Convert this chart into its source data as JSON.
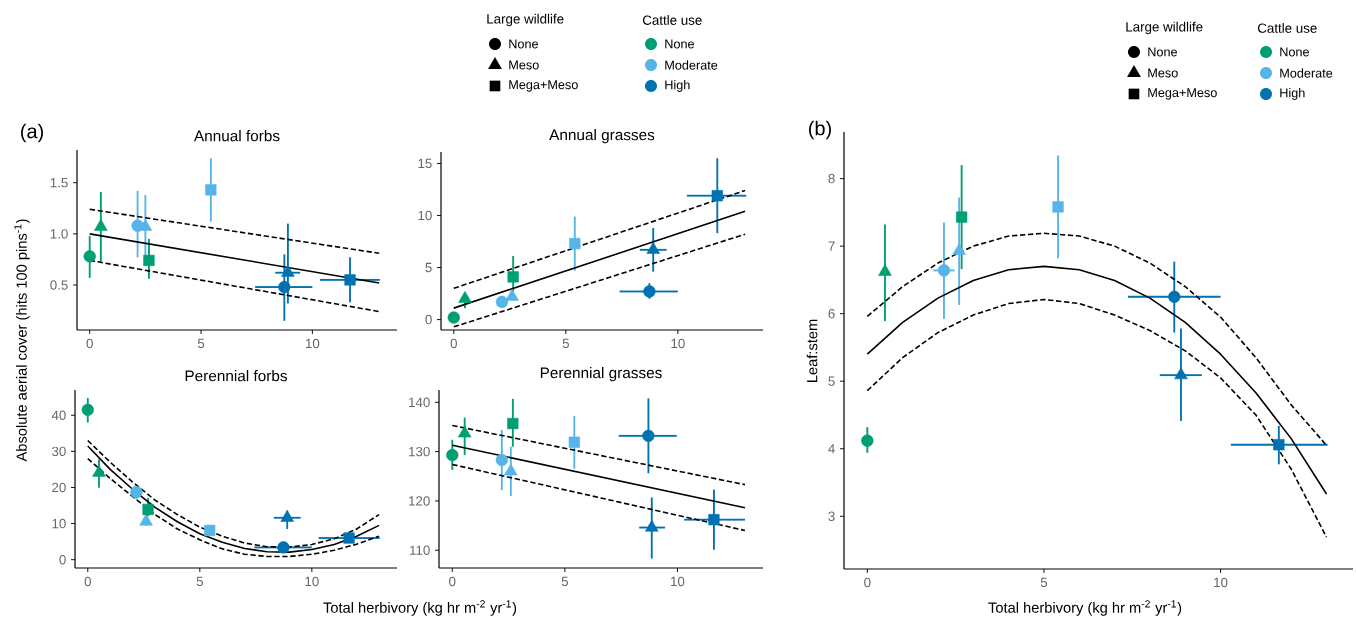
{
  "chart_data": [
    {
      "type": "scatter",
      "title": "Annual forbs",
      "ylabel": "Absolute aerial cover (hits 100 pins$^{-1}$)",
      "annotations": [
        "(a)"
      ],
      "legend": "top",
      "legend_title": [
        "Large wildlife",
        "Cattle use"
      ],
      "xlim": [
        -0.57,
        13.8
      ],
      "ylim": [
        0.06,
        1.82
      ],
      "xticks": [
        0,
        5,
        10
      ],
      "yticks": [
        0.5,
        {
          "value": 1,
          "label": "1.0"
        },
        1.5
      ],
      "series": [
        {
          "marker": "circle",
          "colors": [
            "#009e73",
            "#56b4e9",
            "#0072b2"
          ],
          "x": [
            0,
            2.15,
            8.74
          ],
          "values": [
            0.78,
            1.08,
            0.48
          ],
          "errors": [
            [
              0.57,
              0.98
            ],
            [
              0.77,
              1.42
            ],
            [
              0.15,
              0.8
            ]
          ],
          "xerrors": [
            null,
            null,
            [
              7.43,
              10.0
            ]
          ]
        },
        {
          "marker": "triangle",
          "colors": [
            "#009e73",
            "#56b4e9",
            "#0072b2"
          ],
          "x": [
            0.5,
            2.5,
            8.9
          ],
          "values": [
            1.07,
            1.07,
            0.62
          ],
          "errors": [
            [
              0.72,
              1.41
            ],
            [
              0.77,
              1.38
            ],
            [
              0.32,
              1.1
            ]
          ],
          "xerrors": [
            null,
            null,
            [
              8.33,
              9.45
            ]
          ]
        },
        {
          "marker": "square",
          "colors": [
            "#009e73",
            "#56b4e9",
            "#0072b2"
          ],
          "x": [
            2.66,
            5.44,
            11.69
          ],
          "values": [
            0.74,
            1.43,
            0.55
          ],
          "errors": [
            [
              0.56,
              0.95
            ],
            [
              1.12,
              1.74
            ],
            [
              0.33,
              0.77
            ]
          ],
          "xerrors": [
            null,
            null,
            [
              10.34,
              13.03
            ]
          ]
        },
        {
          "name": "None",
          "marker": "circle",
          "color": "#000000"
        },
        {
          "name": "Meso",
          "marker": "triangle",
          "color": "#000000"
        },
        {
          "name": "Mega+Meso",
          "marker": "square",
          "color": "#000000"
        },
        {
          "name": "None",
          "marker": "circle",
          "color": "#009e73"
        },
        {
          "name": "Moderate",
          "marker": "circle",
          "color": "#56b4e9"
        },
        {
          "name": "High",
          "marker": "circle",
          "color": "#0072b2"
        },
        {
          "type": "line",
          "color": "#000000",
          "line_style": "solid",
          "x": [
            0,
            13
          ],
          "values": [
            1.0,
            0.52
          ]
        },
        {
          "type": "line",
          "color": "#000000",
          "line_style": "dashed",
          "x": [
            0,
            13
          ],
          "values": [
            1.24,
            0.81
          ]
        },
        {
          "type": "line",
          "color": "#000000",
          "line_style": "dashed",
          "x": [
            0,
            13
          ],
          "values": [
            0.74,
            0.24
          ]
        }
      ]
    },
    {
      "type": "scatter",
      "title": "Annual grasses",
      "xlim": [
        -0.57,
        13.8
      ],
      "ylim": [
        -1,
        16.1
      ],
      "xticks": [
        0,
        5,
        10
      ],
      "yticks": [
        0,
        5,
        10,
        15
      ],
      "series": [
        {
          "marker": "circle",
          "colors": [
            "#009e73",
            "#56b4e9",
            "#0072b2"
          ],
          "x": [
            0,
            2.15,
            8.73
          ],
          "values": [
            0.2,
            1.7,
            2.7
          ],
          "errors": [
            null,
            null,
            [
              2.0,
              3.5
            ]
          ],
          "xerrors": [
            null,
            null,
            [
              7.4,
              10.0
            ]
          ]
        },
        {
          "marker": "triangle",
          "colors": [
            "#009e73",
            "#56b4e9",
            "#0072b2"
          ],
          "x": [
            0.5,
            2.6,
            8.9
          ],
          "values": [
            2.0,
            2.2,
            6.7
          ],
          "errors": [
            [
              1.1,
              2.4
            ],
            null,
            [
              4.6,
              8.8
            ]
          ],
          "xerrors": [
            null,
            null,
            [
              8.3,
              9.5
            ]
          ]
        },
        {
          "marker": "square",
          "colors": [
            "#009e73",
            "#56b4e9",
            "#0072b2"
          ],
          "x": [
            2.65,
            5.4,
            11.76
          ],
          "values": [
            4.1,
            7.3,
            11.9
          ],
          "errors": [
            [
              2.7,
              6.1
            ],
            [
              4.7,
              9.9
            ],
            [
              8.3,
              15.5
            ]
          ],
          "xerrors": [
            null,
            null,
            [
              10.4,
              13.05
            ]
          ]
        },
        {
          "type": "line",
          "color": "#000000",
          "line_style": "solid",
          "x": [
            0,
            13
          ],
          "values": [
            1.1,
            10.4
          ]
        },
        {
          "type": "line",
          "color": "#000000",
          "line_style": "dashed",
          "x": [
            0,
            13
          ],
          "values": [
            3.0,
            12.4
          ]
        },
        {
          "type": "line",
          "color": "#000000",
          "line_style": "dashed",
          "x": [
            0,
            13
          ],
          "values": [
            -0.7,
            8.2
          ]
        }
      ]
    },
    {
      "type": "scatter",
      "title": "Perennial forbs",
      "xlabel": "Total herbivory (kg hr m$^{-2}$ yr$^{-1}$)",
      "xlim": [
        -0.57,
        13.8
      ],
      "ylim": [
        -2.3,
        47
      ],
      "xticks": [
        0,
        5,
        10
      ],
      "yticks": [
        0,
        10,
        20,
        30,
        40
      ],
      "series": [
        {
          "marker": "circle",
          "colors": [
            "#009e73",
            "#56b4e9",
            "#0072b2"
          ],
          "x": [
            0,
            2.17,
            8.73
          ],
          "values": [
            41.5,
            18.7,
            3.4
          ],
          "errors": [
            [
              38,
              44.8
            ],
            [
              16.7,
              20.8
            ],
            null
          ],
          "xerrors": [
            null,
            null,
            [
              7.43,
              10.0
            ]
          ]
        },
        {
          "marker": "triangle",
          "colors": [
            "#009e73",
            "#56b4e9",
            "#0072b2"
          ],
          "x": [
            0.5,
            2.6,
            8.9
          ],
          "values": [
            24.1,
            10.6,
            11.6
          ],
          "errors": [
            [
              19.9,
              27.8
            ],
            [
              9.3,
              13
            ],
            [
              8.5,
              13.6
            ]
          ],
          "xerrors": [
            null,
            null,
            [
              8.3,
              9.5
            ]
          ]
        },
        {
          "marker": "square",
          "colors": [
            "#009e73",
            "#56b4e9",
            "#0072b2"
          ],
          "x": [
            2.69,
            5.44,
            11.66
          ],
          "values": [
            13.9,
            8.1,
            6.0
          ],
          "errors": [
            [
              12,
              17.1
            ],
            null,
            null
          ],
          "xerrors": [
            null,
            null,
            [
              10.3,
              13.03
            ]
          ]
        },
        {
          "type": "line",
          "color": "#000000",
          "line_style": "solid",
          "x": [
            0,
            1,
            2,
            3,
            4,
            5,
            6,
            7,
            8,
            9,
            10,
            11,
            12,
            13
          ],
          "values": [
            31.5,
            25,
            19.5,
            14.5,
            10.5,
            7.2,
            4.8,
            3.1,
            2.2,
            2.1,
            2.8,
            4.2,
            6.5,
            9.5
          ]
        },
        {
          "type": "line",
          "color": "#000000",
          "line_style": "dashed",
          "x": [
            0,
            1,
            2,
            3,
            4,
            5,
            6,
            7,
            8,
            9,
            10,
            11,
            12,
            13
          ],
          "values": [
            33,
            27,
            21.5,
            16.5,
            12.5,
            9,
            6.5,
            4.6,
            3.6,
            3.5,
            4.2,
            5.8,
            8.5,
            12.5
          ]
        },
        {
          "type": "line",
          "color": "#000000",
          "line_style": "dashed",
          "x": [
            0,
            1,
            2,
            3,
            4,
            5,
            6,
            7,
            8,
            9,
            10,
            11,
            12,
            13
          ],
          "values": [
            28,
            22.5,
            17.5,
            12.5,
            8.5,
            5.5,
            3,
            1.5,
            0.9,
            0.9,
            1.5,
            2.6,
            4.3,
            6.5
          ]
        }
      ]
    },
    {
      "type": "scatter",
      "title": "Perennial grasses",
      "xlim": [
        -0.59,
        13.8
      ],
      "ylim": [
        106.4,
        142.5
      ],
      "xticks": [
        0,
        5,
        10
      ],
      "yticks": [
        110,
        120,
        130,
        140
      ],
      "series": [
        {
          "marker": "circle",
          "colors": [
            "#009e73",
            "#56b4e9",
            "#0072b2"
          ],
          "x": [
            0,
            2.2,
            8.71
          ],
          "values": [
            129.3,
            128.3,
            133.2
          ],
          "errors": [
            [
              126.3,
              132.4
            ],
            [
              122.2,
              134.4
            ],
            [
              125.6,
              140.8
            ]
          ],
          "xerrors": [
            null,
            null,
            [
              7.39,
              9.97
            ]
          ]
        },
        {
          "marker": "triangle",
          "colors": [
            "#009e73",
            "#56b4e9",
            "#0072b2"
          ],
          "x": [
            0.55,
            2.6,
            8.86
          ],
          "values": [
            133.7,
            126,
            114.6
          ],
          "errors": [
            [
              129.3,
              136.9
            ],
            [
              121,
              131
            ],
            [
              108.3,
              120.7
            ]
          ],
          "xerrors": [
            null,
            null,
            [
              8.3,
              9.45
            ]
          ]
        },
        {
          "marker": "square",
          "colors": [
            "#009e73",
            "#56b4e9",
            "#0072b2"
          ],
          "x": [
            2.69,
            5.42,
            11.62
          ],
          "values": [
            135.7,
            131.9,
            116.2
          ],
          "errors": [
            [
              131,
              140.7
            ],
            [
              126.5,
              137.2
            ],
            [
              110.1,
              122.3
            ]
          ],
          "xerrors": [
            null,
            null,
            [
              10.3,
              13.0
            ]
          ]
        },
        {
          "type": "line",
          "color": "#000000",
          "line_style": "solid",
          "x": [
            0,
            13
          ],
          "values": [
            131.3,
            118.6
          ]
        },
        {
          "type": "line",
          "color": "#000000",
          "line_style": "dashed",
          "x": [
            0,
            13
          ],
          "values": [
            135.3,
            123.3
          ]
        },
        {
          "type": "line",
          "color": "#000000",
          "line_style": "dashed",
          "x": [
            0,
            13
          ],
          "values": [
            127.4,
            114.0
          ]
        }
      ]
    },
    {
      "type": "scatter",
      "xlabel": "Total herbivory (kg hr m$^{-2}$ yr$^{-1}$)",
      "ylabel": "Leaf:stem",
      "annotations": [
        "(b)"
      ],
      "legend": "top right",
      "legend_title": [
        "Large wildlife",
        "Cattle use"
      ],
      "xlim": [
        -0.66,
        13.75
      ],
      "ylim": [
        2.22,
        8.69
      ],
      "xticks": [
        0,
        5,
        10
      ],
      "yticks": [
        3,
        4,
        5,
        6,
        7,
        8
      ],
      "series": [
        {
          "marker": "circle",
          "colors": [
            "#009e73",
            "#56b4e9",
            "#0072b2"
          ],
          "x": [
            0,
            2.17,
            8.69
          ],
          "values": [
            4.12,
            6.64,
            6.25
          ],
          "errors": [
            [
              3.94,
              4.32
            ],
            [
              5.92,
              7.35
            ],
            [
              5.72,
              6.77
            ]
          ],
          "xerrors": [
            null,
            [
              1.87,
              2.47
            ],
            [
              7.38,
              10.0
            ]
          ]
        },
        {
          "marker": "triangle",
          "colors": [
            "#009e73",
            "#56b4e9",
            "#0072b2"
          ],
          "x": [
            0.5,
            2.6,
            8.88
          ],
          "values": [
            6.62,
            6.93,
            5.09
          ],
          "errors": [
            [
              5.89,
              7.32
            ],
            [
              6.13,
              7.72
            ],
            [
              4.41,
              5.78
            ]
          ],
          "xerrors": [
            null,
            null,
            [
              8.28,
              9.47
            ]
          ]
        },
        {
          "marker": "square",
          "colors": [
            "#009e73",
            "#56b4e9",
            "#0072b2"
          ],
          "x": [
            2.67,
            5.4,
            11.65
          ],
          "values": [
            7.43,
            7.58,
            4.06
          ],
          "errors": [
            [
              6.66,
              8.2
            ],
            [
              6.82,
              8.34
            ],
            [
              3.77,
              4.34
            ]
          ],
          "xerrors": [
            null,
            null,
            [
              10.29,
              13.03
            ]
          ]
        },
        {
          "name": "None",
          "marker": "circle",
          "color": "#000000"
        },
        {
          "name": "Meso",
          "marker": "triangle",
          "color": "#000000"
        },
        {
          "name": "Mega+Meso",
          "marker": "square",
          "color": "#000000"
        },
        {
          "name": "None",
          "marker": "circle",
          "color": "#009e73"
        },
        {
          "name": "Moderate",
          "marker": "circle",
          "color": "#56b4e9"
        },
        {
          "name": "High",
          "marker": "circle",
          "color": "#0072b2"
        },
        {
          "type": "line",
          "color": "#000000",
          "line_style": "solid",
          "x": [
            0,
            1,
            2,
            3,
            4,
            5,
            6,
            7,
            8,
            9,
            10,
            11,
            12,
            13
          ],
          "values": [
            5.4,
            5.87,
            6.23,
            6.49,
            6.65,
            6.7,
            6.65,
            6.49,
            6.23,
            5.87,
            5.4,
            4.83,
            4.15,
            3.33
          ]
        },
        {
          "type": "line",
          "color": "#000000",
          "line_style": "dashed",
          "x": [
            0,
            1,
            2,
            3,
            4,
            5,
            6,
            7,
            8,
            9,
            10,
            11,
            12,
            13
          ],
          "values": [
            5.96,
            6.4,
            6.75,
            7.0,
            7.15,
            7.19,
            7.15,
            7.0,
            6.75,
            6.4,
            5.95,
            5.35,
            4.65,
            4.05
          ]
        },
        {
          "type": "line",
          "color": "#000000",
          "line_style": "dashed",
          "x": [
            0,
            1,
            2,
            3,
            4,
            5,
            6,
            7,
            8,
            9,
            10,
            11,
            12,
            13
          ],
          "values": [
            4.86,
            5.35,
            5.72,
            5.98,
            6.15,
            6.21,
            6.15,
            5.98,
            5.75,
            5.45,
            5.05,
            4.5,
            3.7,
            2.69
          ]
        }
      ]
    }
  ]
}
